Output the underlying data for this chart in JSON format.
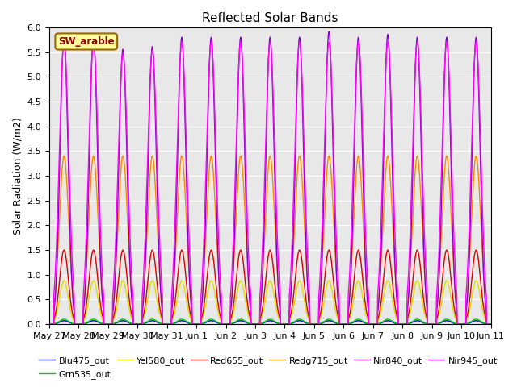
{
  "title": "Reflected Solar Bands",
  "ylabel": "Solar Radiation (W/m2)",
  "annotation": "SW_arable",
  "ylim": [
    0.0,
    6.0
  ],
  "yticks": [
    0.0,
    0.5,
    1.0,
    1.5,
    2.0,
    2.5,
    3.0,
    3.5,
    4.0,
    4.5,
    5.0,
    5.5,
    6.0
  ],
  "background_color": "#e8e8e8",
  "lines": [
    {
      "name": "Blu475_out",
      "color": "#0000dd",
      "lw": 1.0,
      "peak": 0.07
    },
    {
      "name": "Grn535_out",
      "color": "#00cc00",
      "lw": 1.0,
      "peak": 0.1
    },
    {
      "name": "Yel580_out",
      "color": "#dddd00",
      "lw": 1.0,
      "peak": 0.88
    },
    {
      "name": "Red655_out",
      "color": "#dd0000",
      "lw": 1.0,
      "peak": 1.5
    },
    {
      "name": "Redg715_out",
      "color": "#ff8800",
      "lw": 1.0,
      "peak": 3.4
    },
    {
      "name": "Nir840_out",
      "color": "#8800cc",
      "lw": 1.0,
      "peak": 5.8
    },
    {
      "name": "Nir945_out",
      "color": "#ff00ff",
      "lw": 1.0,
      "peak": 5.7
    }
  ],
  "n_days": 15,
  "points_per_day": 288,
  "xtick_labels": [
    "May 27",
    "May 28",
    "May 29",
    "May 30",
    "May 31",
    "Jun 1",
    "Jun 2",
    "Jun 3",
    "Jun 4",
    "Jun 5",
    "Jun 6",
    "Jun 7",
    "Jun 8",
    "Jun 9",
    "Jun 10",
    "Jun 11"
  ],
  "peak_day_variations": {
    "Blu475_out": [
      1.0,
      1.0,
      1.0,
      1.0,
      1.0,
      1.0,
      1.0,
      1.0,
      1.0,
      1.0,
      1.0,
      1.0,
      1.0,
      1.0,
      1.0
    ],
    "Grn535_out": [
      1.0,
      1.0,
      1.0,
      1.0,
      1.0,
      1.0,
      1.0,
      1.0,
      1.0,
      1.0,
      1.0,
      1.0,
      1.0,
      1.0,
      1.0
    ],
    "Yel580_out": [
      1.0,
      1.0,
      1.0,
      1.0,
      1.0,
      1.0,
      1.0,
      1.0,
      1.0,
      1.0,
      1.0,
      1.0,
      1.0,
      1.0,
      1.0
    ],
    "Red655_out": [
      1.0,
      1.0,
      1.0,
      1.0,
      1.0,
      1.0,
      1.0,
      1.0,
      1.0,
      1.0,
      1.0,
      1.0,
      1.0,
      1.0,
      1.0
    ],
    "Redg715_out": [
      1.0,
      1.0,
      1.0,
      1.0,
      1.0,
      1.0,
      1.0,
      1.0,
      1.0,
      1.0,
      1.0,
      1.0,
      1.0,
      1.0,
      1.0
    ],
    "Nir840_out": [
      1.0,
      1.0,
      0.958,
      0.968,
      1.0,
      1.0,
      1.0,
      1.0,
      1.0,
      1.02,
      1.0,
      1.01,
      1.0,
      1.0,
      1.0
    ],
    "Nir945_out": [
      1.0,
      1.0,
      0.96,
      0.97,
      1.0,
      1.0,
      1.0,
      1.0,
      1.0,
      1.0,
      1.0,
      1.0,
      1.0,
      1.0,
      1.0
    ]
  }
}
